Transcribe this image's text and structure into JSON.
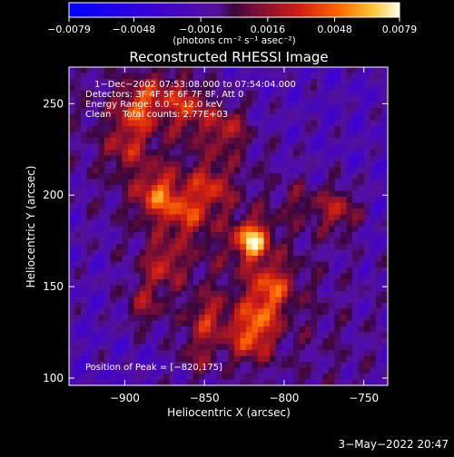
{
  "chart_data": {
    "type": "heatmap",
    "title": "Reconstructed RHESSI Image",
    "xlabel": "Heliocentric X (arcsec)",
    "ylabel": "Heliocentric Y (arcsec)",
    "xlim": [
      -935,
      -735
    ],
    "ylim": [
      96,
      270
    ],
    "x_ticks": [
      -900,
      -850,
      -800,
      -750
    ],
    "y_ticks": [
      100,
      150,
      200,
      250
    ],
    "x_tick_labels": [
      "−900",
      "−850",
      "−800",
      "−750"
    ],
    "y_tick_labels": [
      "100",
      "150",
      "200",
      "250"
    ],
    "colorbar": {
      "min": -0.0079,
      "max": 0.0079,
      "ticks": [
        -0.0079,
        -0.0048,
        -0.0016,
        0.0016,
        0.0048,
        0.0079
      ],
      "tick_labels": [
        "−0.0079",
        "−0.0048",
        "−0.0016",
        "0.0016",
        "0.0048",
        "0.0079"
      ],
      "units_label": "(photons cm⁻² s⁻¹ asec⁻²)"
    },
    "annotations": [
      "1−Dec−2002 07:53:08.000 to 07:54:04.000",
      "Detectors: 3F 4F 5F 6F 7F 8F, Att 0",
      "Energy Range: 6.0 − 12.0 keV",
      "Clean    Total counts: 2.77E+03",
      "Position of Peak = [−820,175]"
    ],
    "peak": {
      "x": -820,
      "y": 175
    },
    "sources": [
      {
        "x": -820,
        "y": 175,
        "value": 0.0079
      },
      {
        "x": -880,
        "y": 200,
        "value": 0.0048
      },
      {
        "x": -892,
        "y": 247,
        "value": 0.0046
      },
      {
        "x": -860,
        "y": 248,
        "value": 0.0042
      },
      {
        "x": -836,
        "y": 236,
        "value": 0.0036
      },
      {
        "x": -808,
        "y": 150,
        "value": 0.0044
      },
      {
        "x": -816,
        "y": 133,
        "value": 0.0038
      },
      {
        "x": -848,
        "y": 132,
        "value": 0.0036
      },
      {
        "x": -822,
        "y": 120,
        "value": 0.004
      },
      {
        "x": -876,
        "y": 162,
        "value": 0.0036
      },
      {
        "x": -862,
        "y": 190,
        "value": 0.0034
      },
      {
        "x": -846,
        "y": 205,
        "value": 0.0032
      },
      {
        "x": -888,
        "y": 140,
        "value": 0.003
      },
      {
        "x": -899,
        "y": 226,
        "value": 0.0028
      },
      {
        "x": -766,
        "y": 192,
        "value": 0.004
      },
      {
        "x": -790,
        "y": 196,
        "value": 0.0018
      },
      {
        "x": -854,
        "y": 112,
        "value": 0.0024
      },
      {
        "x": -878,
        "y": 258,
        "value": 0.0026
      }
    ]
  },
  "footer": {
    "date": "3−May−2022 20:47"
  }
}
